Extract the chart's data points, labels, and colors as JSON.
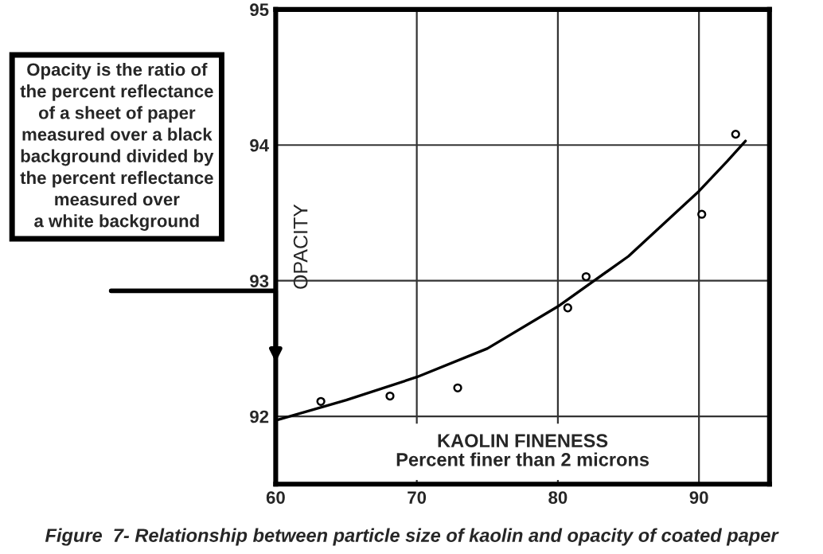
{
  "chart_data": {
    "type": "scatter",
    "title": "Figure  7- Relationship between particle size of kaolin and opacity of coated paper",
    "xlabel": "KAOLIN FINENESS\nPercent finer than 2 microns",
    "ylabel": "OPACITY",
    "annotations": [
      "Opacity is the ratio of\nthe percent reflectance\nof a sheet of paper\nmeasured over a black\nbackground divided by\nthe percent reflectance\nmeasured over\na white background"
    ],
    "series": [
      {
        "color": "#000000",
        "marker": "circle",
        "x": [
          63.2,
          68.1,
          72.9,
          80.7,
          82.0,
          90.2,
          92.6
        ],
        "values": [
          92.11,
          92.15,
          92.21,
          92.8,
          93.03,
          93.49,
          94.08
        ]
      },
      {
        "type": "line",
        "color": "#000000",
        "line_style": "solid",
        "x": [
          60,
          65,
          70,
          75,
          80,
          85,
          90,
          92,
          93.3
        ],
        "values": [
          91.97,
          92.12,
          92.29,
          92.5,
          92.81,
          93.18,
          93.66,
          93.88,
          94.03
        ]
      }
    ],
    "xlim": [
      60,
      95
    ],
    "xticks": [
      60,
      70,
      80,
      90
    ],
    "ylim": [
      91.5,
      95
    ],
    "yticks": [
      92,
      93,
      94,
      95
    ],
    "grid": true
  }
}
